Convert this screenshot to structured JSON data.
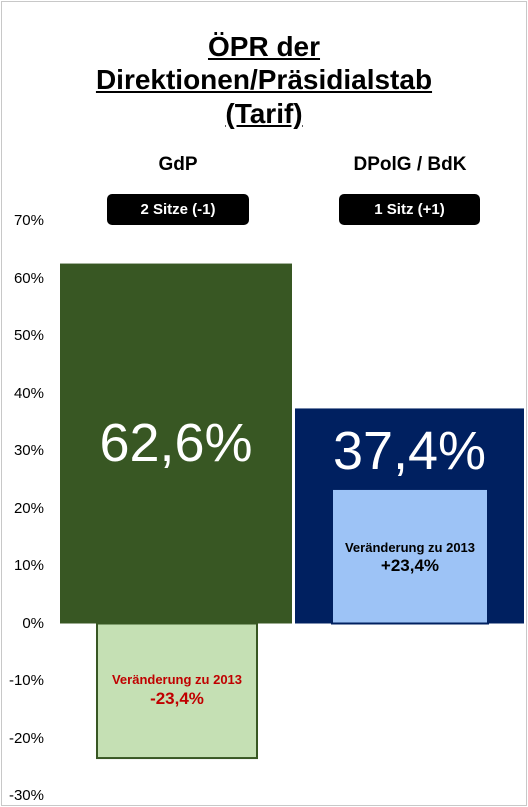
{
  "title_lines": [
    "ÖPR der",
    "Direktionen/Präsidialstab",
    "(Tarif)"
  ],
  "colors": {
    "gdp_bar": "#385723",
    "gdp_change": "#c5e0b4",
    "gdp_change_text": "#c00000",
    "dpolg_bar": "#002060",
    "dpolg_change": "#9dc3f6",
    "dpolg_change_text": "#000000"
  },
  "chart_data": {
    "type": "bar",
    "categories": [
      "GdP",
      "DPolG / BdK"
    ],
    "series": [
      {
        "values": [
          62.6,
          37.4
        ]
      },
      {
        "values": [
          -23.4,
          23.4
        ]
      }
    ],
    "seats": [
      "2 Sitze (-1)",
      "1 Sitz (+1)"
    ],
    "data_labels": [
      "62,6%",
      "37,4%"
    ],
    "change_caption": "Veränderung zu 2013",
    "change_labels": [
      "-23,4%",
      "+23,4%"
    ],
    "y_ticks": [
      "70%",
      "60%",
      "50%",
      "40%",
      "30%",
      "20%",
      "10%",
      "0%",
      "-10%",
      "-20%",
      "-30%"
    ],
    "ylim": [
      -30,
      70
    ],
    "grid": false
  }
}
